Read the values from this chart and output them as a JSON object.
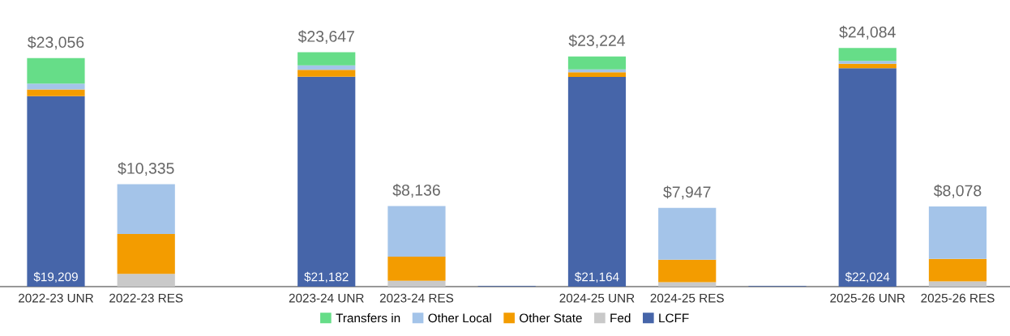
{
  "chart_data": {
    "type": "bar",
    "stacked": true,
    "categories": [
      "2022-23 UNR",
      "2022-23 RES",
      null,
      "2023-24 UNR",
      "2023-24 RES",
      null,
      "2024-25 UNR",
      "2024-25 RES",
      null,
      "2025-26 UNR",
      "2025-26 RES"
    ],
    "series": [
      {
        "name": "LCFF",
        "color": "#4665a9",
        "values": [
          19209,
          null,
          null,
          21182,
          null,
          60,
          21164,
          null,
          60,
          22024,
          null
        ],
        "value_labels": [
          "$19,209",
          null,
          null,
          "$21,182",
          null,
          null,
          "$21,164",
          null,
          null,
          "$22,024",
          null
        ]
      },
      {
        "name": "Fed",
        "color": "#c9c9c9",
        "values": [
          null,
          1290,
          null,
          null,
          600,
          null,
          null,
          450,
          null,
          null,
          530
        ]
      },
      {
        "name": "Other State",
        "color": "#f39c00",
        "values": [
          680,
          4020,
          null,
          680,
          2430,
          null,
          450,
          2270,
          null,
          450,
          2270
        ]
      },
      {
        "name": "Other Local",
        "color": "#a4c4e9",
        "values": [
          600,
          5025,
          null,
          450,
          5106,
          null,
          300,
          5227,
          null,
          300,
          5278
        ]
      },
      {
        "name": "Transfers in",
        "color": "#66dd88",
        "values": [
          2567,
          null,
          null,
          1335,
          null,
          null,
          1310,
          null,
          null,
          1310,
          null
        ]
      }
    ],
    "totals": [
      "$23,056",
      "$10,335",
      null,
      "$23,647",
      "$8,136",
      null,
      "$23,224",
      "$7,947",
      null,
      "$24,084",
      "$8,078"
    ],
    "legend": "bottom",
    "grid": false
  }
}
